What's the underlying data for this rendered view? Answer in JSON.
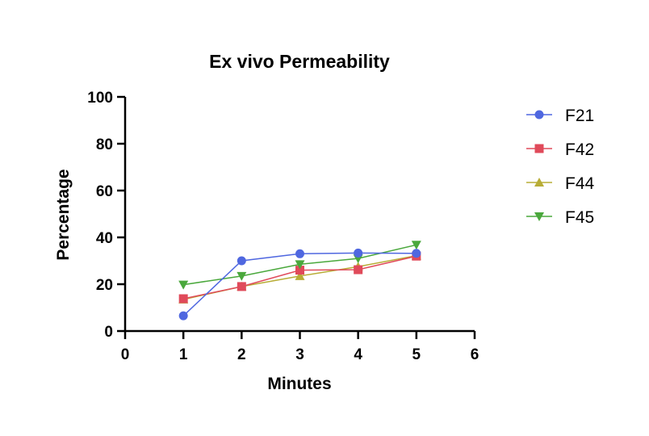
{
  "chart_data": {
    "type": "line",
    "title": "Ex vivo Permeability",
    "xlabel": "Minutes",
    "ylabel": "Percentage",
    "xlim": [
      0,
      6
    ],
    "ylim": [
      0,
      100
    ],
    "xticks": [
      0,
      1,
      2,
      3,
      4,
      5,
      6
    ],
    "yticks": [
      0,
      20,
      40,
      60,
      80,
      100
    ],
    "grid": false,
    "legend_position": "right",
    "x": [
      1,
      2,
      3,
      4,
      5
    ],
    "series": [
      {
        "name": "F21",
        "values": [
          6.5,
          30,
          33,
          33.3,
          33.2
        ],
        "color": "#4f67e0",
        "marker": "circle"
      },
      {
        "name": "F42",
        "values": [
          13.8,
          19,
          26,
          26.2,
          32
        ],
        "color": "#e04a5a",
        "marker": "square"
      },
      {
        "name": "F44",
        "values": [
          13.5,
          19,
          23.5,
          27.5,
          32.2
        ],
        "color": "#b8ad36",
        "marker": "triangle-up"
      },
      {
        "name": "F45",
        "values": [
          19.8,
          23.5,
          28.5,
          31,
          36.8
        ],
        "color": "#4aa83c",
        "marker": "triangle-down"
      }
    ]
  }
}
